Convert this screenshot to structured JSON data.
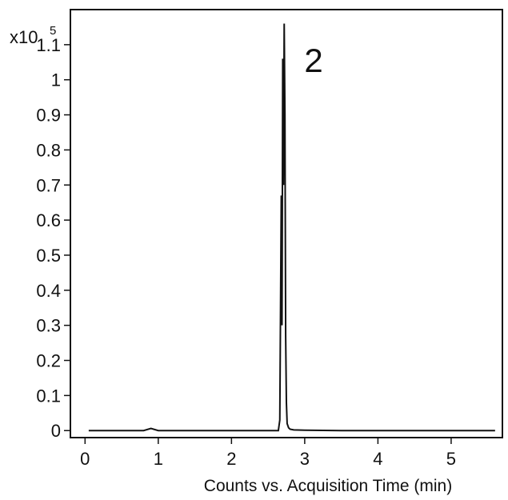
{
  "chart_data": {
    "type": "line",
    "title": "",
    "xlabel": "Counts vs. Acquisition Time (min)",
    "ylabel": "",
    "y_multiplier_label": {
      "base": "x10",
      "exponent": "5"
    },
    "peak_annotation": {
      "text": "2",
      "x": 2.74
    },
    "xlim": [
      -0.2,
      5.7
    ],
    "ylim": [
      -0.02,
      1.2
    ],
    "xticks": [
      0,
      1,
      2,
      3,
      4,
      5
    ],
    "xtick_labels": [
      "0",
      "1",
      "2",
      "3",
      "4",
      "5"
    ],
    "yticks": [
      0,
      0.1,
      0.2,
      0.3,
      0.4,
      0.5,
      0.6,
      0.7,
      0.8,
      0.9,
      1,
      1.1
    ],
    "ytick_labels": [
      "0",
      "0.1",
      "0.2",
      "0.3",
      "0.4",
      "0.5",
      "0.6",
      "0.7",
      "0.8",
      "0.9",
      "1",
      "1.1"
    ],
    "grid": false,
    "legend": "none",
    "line_color": "#111111",
    "series": [
      {
        "x": [
          0.05,
          0.3,
          0.8,
          0.9,
          1.0,
          1.5,
          2.0,
          2.5,
          2.64,
          2.66,
          2.68,
          2.69,
          2.7,
          2.71,
          2.72,
          2.73,
          2.74,
          2.75,
          2.76,
          2.78,
          2.8,
          2.85,
          3.0,
          3.5,
          4.0,
          4.5,
          5.0,
          5.6
        ],
        "y": [
          0.0,
          0.0,
          0.0,
          0.006,
          0.0,
          0.0,
          0.0,
          0.0,
          0.0,
          0.03,
          0.67,
          0.3,
          1.06,
          0.7,
          1.16,
          0.9,
          0.27,
          0.08,
          0.02,
          0.008,
          0.004,
          0.002,
          0.001,
          0.0,
          0.0,
          0.0,
          0.0,
          0.0
        ]
      }
    ]
  }
}
